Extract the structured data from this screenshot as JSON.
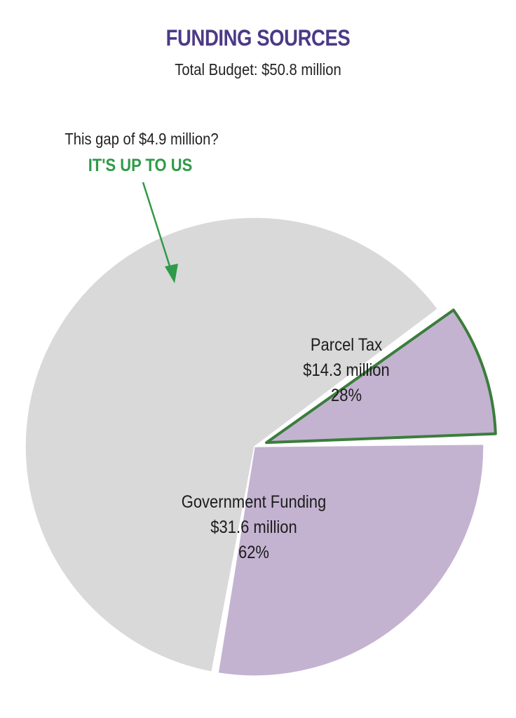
{
  "chart_data": {
    "type": "pie",
    "title": "FUNDING SOURCES",
    "subtitle": "Total Budget: $50.8 million",
    "total": 50.8,
    "slices": [
      {
        "name": "Parcel Tax",
        "value": 14.3,
        "value_label": "$14.3 million",
        "percent_label": "28%",
        "color": "#c3b3d0",
        "exploded": false
      },
      {
        "name": "Government Funding",
        "value": 31.6,
        "value_label": "$31.6 million",
        "percent_label": "62%",
        "color": "#d9d9d9",
        "exploded": false
      },
      {
        "name": "",
        "value": 4.9,
        "color": "#c3b3d0",
        "border_color": "#3b7d3c",
        "exploded": true
      }
    ],
    "annotation": {
      "line1": "This gap of $4.9 million?",
      "line2": "IT'S UP TO US",
      "line2_color": "#2f9a48",
      "arrow_color": "#2f9a48"
    }
  }
}
